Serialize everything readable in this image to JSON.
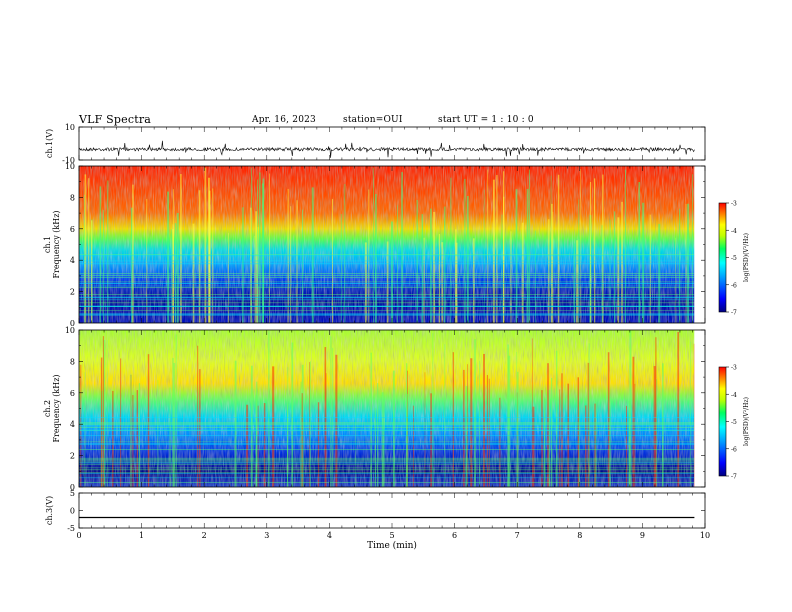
{
  "header": {
    "title": "VLF Spectra",
    "date": "Apr. 16, 2023",
    "station": "station=OUI",
    "start": "start  UT =   1 : 10 : 0"
  },
  "chart_data": [
    {
      "id": "ch1-waveform",
      "type": "line",
      "ylabel": "ch.1(V)",
      "ylim": [
        -10,
        10
      ],
      "yticks": [
        "10",
        "-10"
      ],
      "xlim": [
        0,
        10
      ],
      "trace_xmax": 9.83,
      "baseline": -3.5
    },
    {
      "id": "ch1-spectrogram",
      "type": "heatmap",
      "ylabel": "ch.1",
      "ylabel2": "Frequency (kHz)",
      "ylim": [
        0,
        10
      ],
      "yticks": [
        "0",
        "2",
        "4",
        "6",
        "8",
        "10"
      ],
      "xlim": [
        0,
        10
      ],
      "trace_xmax": 9.83,
      "colorbar": {
        "label": "log(PSD)(V²/Hz)",
        "range": [
          -7,
          -3
        ],
        "ticks": [
          "-3",
          "-4",
          "-5",
          "-6",
          "-7"
        ]
      }
    },
    {
      "id": "ch2-spectrogram",
      "type": "heatmap",
      "ylabel": "ch.2",
      "ylabel2": "Frequency (kHz)",
      "ylim": [
        0,
        10
      ],
      "yticks": [
        "0",
        "2",
        "4",
        "6",
        "8",
        "10"
      ],
      "xlim": [
        0,
        10
      ],
      "trace_xmax": 9.83,
      "colorbar": {
        "label": "log(PSD)(V²/Hz)",
        "range": [
          -7,
          -3
        ],
        "ticks": [
          "-3",
          "-4",
          "-5",
          "-6",
          "-7"
        ]
      }
    },
    {
      "id": "ch3-waveform",
      "type": "line",
      "ylabel": "ch.3(V)",
      "ylim": [
        -5,
        5
      ],
      "yticks": [
        "5",
        "0",
        "-5"
      ],
      "xlim": [
        0,
        10
      ],
      "trace_xmax": 9.83,
      "baseline": -2.0,
      "xlabel": "Time (min)",
      "xticks": [
        "0",
        "1",
        "2",
        "3",
        "4",
        "5",
        "6",
        "7",
        "8",
        "9",
        "10"
      ]
    }
  ],
  "colors": {
    "spectrum": [
      "#000080",
      "#0000ff",
      "#00a0ff",
      "#00ffff",
      "#00ff80",
      "#a0ff00",
      "#ffff00",
      "#ff8000",
      "#ff0000"
    ]
  }
}
